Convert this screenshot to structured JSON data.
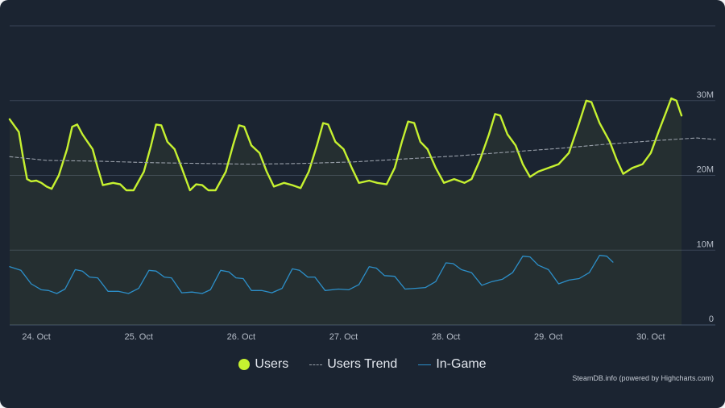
{
  "chart_data": {
    "type": "line",
    "title": "",
    "xlabel": "",
    "ylabel": "",
    "x_ticks": [
      "24. Oct",
      "25. Oct",
      "26. Oct",
      "27. Oct",
      "28. Oct",
      "29. Oct",
      "30. Oct"
    ],
    "y_ticks": [
      "0",
      "10M",
      "20M",
      "30M"
    ],
    "ylim": [
      0,
      40000000
    ],
    "xlim": [
      -0.26,
      6.63
    ],
    "grid": true,
    "legend_position": "bottom",
    "credits": "SteamDB.info (powered by Highcharts.com)",
    "series": [
      {
        "name": "Users",
        "color": "#c6f130",
        "style": "solid-fill",
        "points": [
          [
            -0.26,
            27.5
          ],
          [
            -0.17,
            25.8
          ],
          [
            -0.13,
            22.5
          ],
          [
            -0.09,
            19.5
          ],
          [
            -0.05,
            19.2
          ],
          [
            0.0,
            19.3
          ],
          [
            0.05,
            19.0
          ],
          [
            0.1,
            18.5
          ],
          [
            0.15,
            18.2
          ],
          [
            0.22,
            20.0
          ],
          [
            0.3,
            23.5
          ],
          [
            0.35,
            26.5
          ],
          [
            0.4,
            26.8
          ],
          [
            0.45,
            25.5
          ],
          [
            0.5,
            24.5
          ],
          [
            0.55,
            23.5
          ],
          [
            0.6,
            21.0
          ],
          [
            0.65,
            18.7
          ],
          [
            0.75,
            19.0
          ],
          [
            0.82,
            18.8
          ],
          [
            0.88,
            18.0
          ],
          [
            0.95,
            18.0
          ],
          [
            1.05,
            20.5
          ],
          [
            1.12,
            24.0
          ],
          [
            1.17,
            26.8
          ],
          [
            1.22,
            26.7
          ],
          [
            1.28,
            24.5
          ],
          [
            1.35,
            23.5
          ],
          [
            1.42,
            21.0
          ],
          [
            1.5,
            18.0
          ],
          [
            1.56,
            18.8
          ],
          [
            1.62,
            18.7
          ],
          [
            1.68,
            18.0
          ],
          [
            1.75,
            18.0
          ],
          [
            1.85,
            20.5
          ],
          [
            1.92,
            24.0
          ],
          [
            1.98,
            26.7
          ],
          [
            2.03,
            26.5
          ],
          [
            2.1,
            24.0
          ],
          [
            2.18,
            23.0
          ],
          [
            2.25,
            20.5
          ],
          [
            2.32,
            18.5
          ],
          [
            2.42,
            19.0
          ],
          [
            2.5,
            18.7
          ],
          [
            2.58,
            18.3
          ],
          [
            2.66,
            20.5
          ],
          [
            2.74,
            24.0
          ],
          [
            2.8,
            27.0
          ],
          [
            2.85,
            26.8
          ],
          [
            2.92,
            24.5
          ],
          [
            3.0,
            23.5
          ],
          [
            3.08,
            21.0
          ],
          [
            3.15,
            19.0
          ],
          [
            3.25,
            19.3
          ],
          [
            3.33,
            19.0
          ],
          [
            3.42,
            18.8
          ],
          [
            3.5,
            21.0
          ],
          [
            3.57,
            24.5
          ],
          [
            3.63,
            27.2
          ],
          [
            3.69,
            27.0
          ],
          [
            3.75,
            24.5
          ],
          [
            3.82,
            23.5
          ],
          [
            3.9,
            21.0
          ],
          [
            3.98,
            19.0
          ],
          [
            4.08,
            19.5
          ],
          [
            4.18,
            19.0
          ],
          [
            4.25,
            19.5
          ],
          [
            4.33,
            22.0
          ],
          [
            4.42,
            25.5
          ],
          [
            4.48,
            28.2
          ],
          [
            4.53,
            28.0
          ],
          [
            4.6,
            25.5
          ],
          [
            4.68,
            24.0
          ],
          [
            4.75,
            21.5
          ],
          [
            4.82,
            19.8
          ],
          [
            4.9,
            20.5
          ],
          [
            5.0,
            21.0
          ],
          [
            5.1,
            21.5
          ],
          [
            5.2,
            23.0
          ],
          [
            5.3,
            27.0
          ],
          [
            5.37,
            30.0
          ],
          [
            5.42,
            29.8
          ],
          [
            5.5,
            27.0
          ],
          [
            5.6,
            24.5
          ],
          [
            5.67,
            22.0
          ],
          [
            5.73,
            20.2
          ],
          [
            5.82,
            21.0
          ],
          [
            5.92,
            21.5
          ],
          [
            6.0,
            23.0
          ],
          [
            6.08,
            26.0
          ],
          [
            6.15,
            28.5
          ],
          [
            6.2,
            30.3
          ],
          [
            6.25,
            30.0
          ],
          [
            6.3,
            28.0
          ]
        ]
      },
      {
        "name": "Users Trend",
        "color": "#9aa1ab",
        "style": "dashed",
        "points": [
          [
            -0.26,
            22.5
          ],
          [
            0.1,
            22.0
          ],
          [
            0.6,
            21.9
          ],
          [
            1.1,
            21.7
          ],
          [
            1.6,
            21.6
          ],
          [
            2.1,
            21.5
          ],
          [
            2.6,
            21.6
          ],
          [
            3.1,
            21.8
          ],
          [
            3.6,
            22.2
          ],
          [
            4.1,
            22.6
          ],
          [
            4.6,
            23.1
          ],
          [
            5.1,
            23.6
          ],
          [
            5.6,
            24.2
          ],
          [
            6.1,
            24.7
          ],
          [
            6.45,
            25.0
          ],
          [
            6.63,
            24.8
          ]
        ]
      },
      {
        "name": "In-Game",
        "color": "#2c8fc9",
        "style": "solid",
        "points": [
          [
            -0.26,
            7.8
          ],
          [
            -0.15,
            7.3
          ],
          [
            -0.05,
            5.5
          ],
          [
            0.05,
            4.7
          ],
          [
            0.12,
            4.6
          ],
          [
            0.2,
            4.2
          ],
          [
            0.28,
            4.8
          ],
          [
            0.38,
            7.4
          ],
          [
            0.45,
            7.2
          ],
          [
            0.52,
            6.4
          ],
          [
            0.6,
            6.3
          ],
          [
            0.7,
            4.5
          ],
          [
            0.8,
            4.5
          ],
          [
            0.9,
            4.2
          ],
          [
            1.0,
            4.9
          ],
          [
            1.1,
            7.3
          ],
          [
            1.17,
            7.2
          ],
          [
            1.25,
            6.4
          ],
          [
            1.32,
            6.3
          ],
          [
            1.42,
            4.3
          ],
          [
            1.52,
            4.4
          ],
          [
            1.62,
            4.2
          ],
          [
            1.7,
            4.7
          ],
          [
            1.8,
            7.3
          ],
          [
            1.88,
            7.1
          ],
          [
            1.95,
            6.3
          ],
          [
            2.02,
            6.2
          ],
          [
            2.1,
            4.6
          ],
          [
            2.2,
            4.6
          ],
          [
            2.3,
            4.3
          ],
          [
            2.4,
            4.9
          ],
          [
            2.5,
            7.5
          ],
          [
            2.57,
            7.3
          ],
          [
            2.65,
            6.4
          ],
          [
            2.72,
            6.4
          ],
          [
            2.82,
            4.6
          ],
          [
            2.95,
            4.8
          ],
          [
            3.05,
            4.7
          ],
          [
            3.15,
            5.4
          ],
          [
            3.25,
            7.8
          ],
          [
            3.32,
            7.6
          ],
          [
            3.4,
            6.6
          ],
          [
            3.5,
            6.5
          ],
          [
            3.6,
            4.8
          ],
          [
            3.7,
            4.9
          ],
          [
            3.8,
            5.0
          ],
          [
            3.9,
            5.8
          ],
          [
            4.0,
            8.3
          ],
          [
            4.07,
            8.2
          ],
          [
            4.15,
            7.4
          ],
          [
            4.25,
            7.0
          ],
          [
            4.35,
            5.3
          ],
          [
            4.45,
            5.8
          ],
          [
            4.55,
            6.1
          ],
          [
            4.65,
            7.0
          ],
          [
            4.75,
            9.2
          ],
          [
            4.82,
            9.1
          ],
          [
            4.9,
            8.0
          ],
          [
            5.0,
            7.4
          ],
          [
            5.1,
            5.5
          ],
          [
            5.2,
            6.0
          ],
          [
            5.3,
            6.2
          ],
          [
            5.4,
            7.0
          ],
          [
            5.5,
            9.3
          ],
          [
            5.57,
            9.2
          ],
          [
            5.63,
            8.4
          ]
        ]
      }
    ]
  },
  "legend": {
    "users_label": "Users",
    "trend_label": "Users Trend",
    "ingame_label": "In-Game"
  }
}
